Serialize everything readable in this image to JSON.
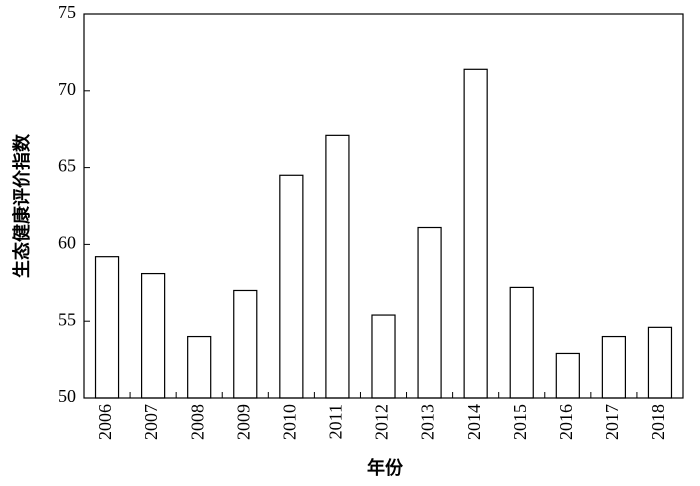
{
  "chart_data": {
    "type": "bar",
    "x_label": "年份",
    "y_label": "生态健康评价指数",
    "categories": [
      "2006",
      "2007",
      "2008",
      "2009",
      "2010",
      "2011",
      "2012",
      "2013",
      "2014",
      "2015",
      "2016",
      "2017",
      "2018"
    ],
    "values": [
      59.2,
      58.1,
      54.0,
      57.0,
      64.5,
      67.1,
      55.4,
      61.1,
      71.4,
      57.2,
      52.9,
      54.0,
      54.6
    ],
    "color": "#ffffff",
    "ylim": [
      50,
      75
    ],
    "yticks": [
      50,
      55,
      60,
      65,
      70,
      75
    ],
    "grid": false
  }
}
